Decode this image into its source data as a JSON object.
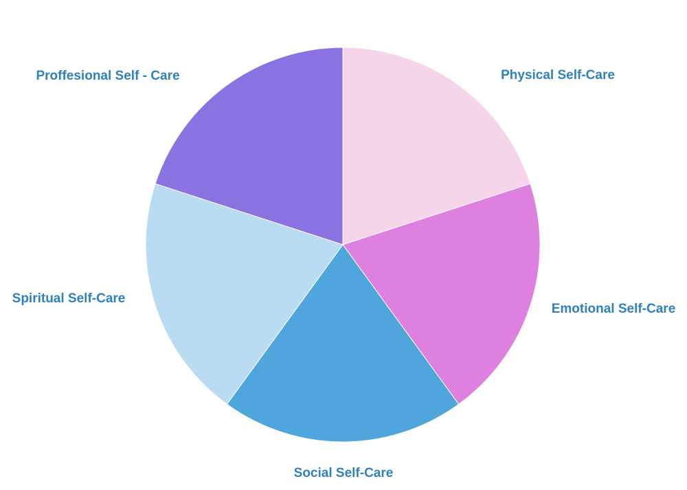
{
  "chart_data": {
    "type": "pie",
    "categories": [
      "Physical Self-Care",
      "Emotional Self-Care",
      "Social Self-Care",
      "Spiritual Self-Care",
      "Proffesional Self - Care"
    ],
    "values": [
      20,
      20,
      20,
      20,
      20
    ],
    "colors": [
      "#f6d5eb",
      "#dd80e0",
      "#4fa6dc",
      "#b9dcf2",
      "#8a73e1"
    ]
  }
}
